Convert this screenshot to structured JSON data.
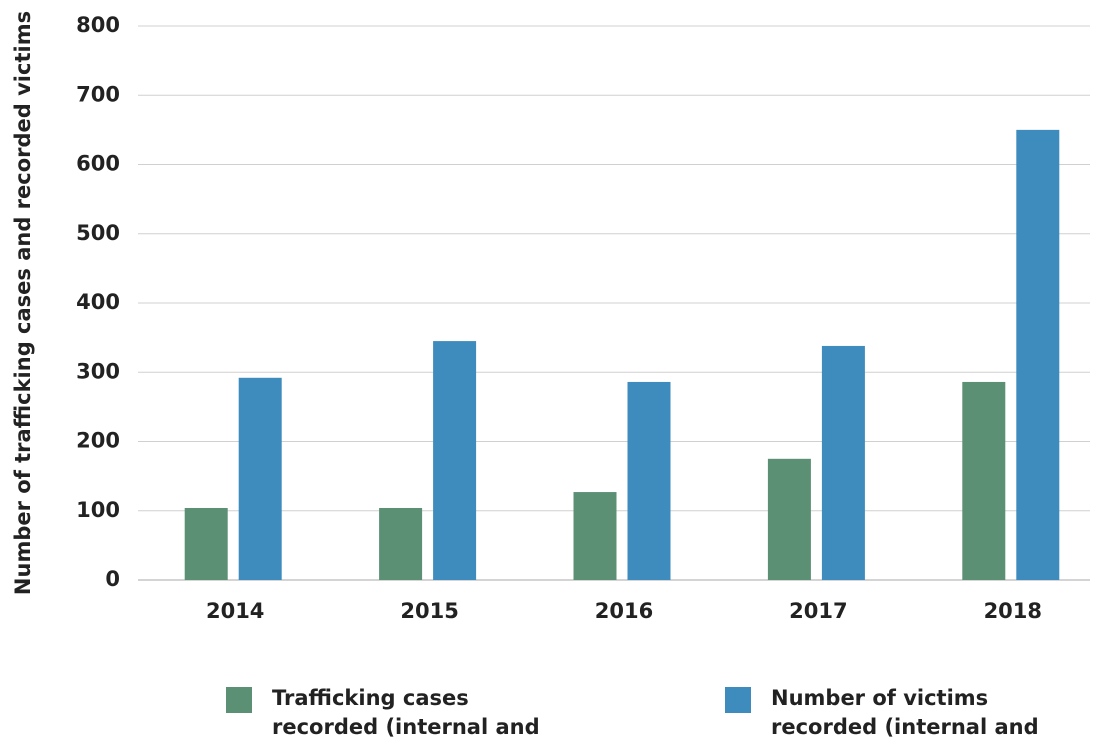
{
  "chart_data": {
    "type": "bar",
    "y_label": "Number of trafficking  cases and recorded victims",
    "categories": [
      "2014",
      "2015",
      "2016",
      "2017",
      "2018"
    ],
    "series": [
      {
        "name": "Trafficking cases recorded (internal and external)",
        "color": "#5b9075",
        "values": [
          104,
          104,
          127,
          175,
          286
        ]
      },
      {
        "name": "Number of victims recorded (internal and external)",
        "color": "#3e8bbd",
        "values": [
          292,
          345,
          286,
          338,
          650
        ]
      }
    ],
    "ylim": [
      0,
      800
    ],
    "yticks": [
      0,
      100,
      200,
      300,
      400,
      500,
      600,
      700,
      800
    ],
    "grid": true
  }
}
